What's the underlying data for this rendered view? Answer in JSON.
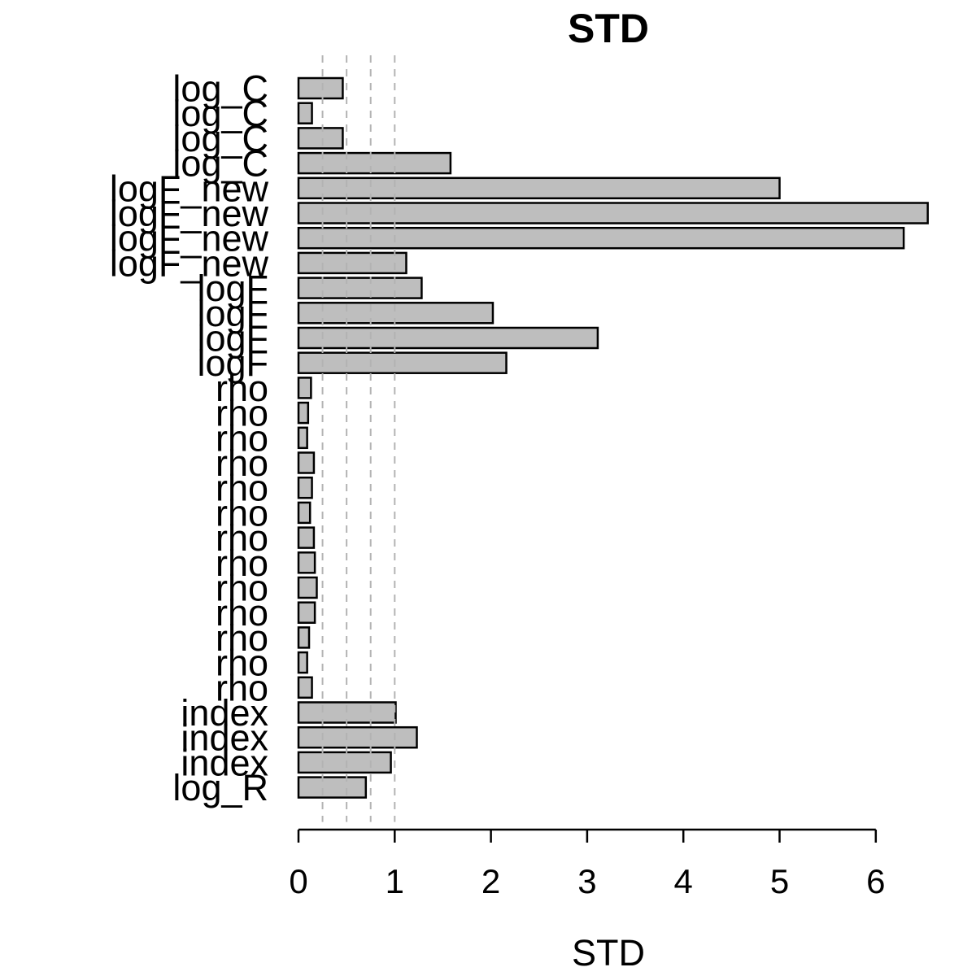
{
  "chart_data": {
    "type": "bar",
    "orientation": "horizontal",
    "title": "STD",
    "xlabel": "STD",
    "ylabel": "",
    "xlim": [
      0,
      6.6
    ],
    "xticks": [
      0,
      1,
      2,
      3,
      4,
      5,
      6
    ],
    "reference_lines": [
      0.25,
      0.5,
      0.75,
      1.0
    ],
    "colors": {
      "bar_fill": "#bebebe",
      "bar_stroke": "#000000",
      "ref_line": "#b3b3b3"
    },
    "grid": false,
    "categories": [
      "log_C",
      "log_C",
      "log_C",
      "log_C",
      "logF_new",
      "logF_new",
      "logF_new",
      "logF_new",
      "logF",
      "logF",
      "logF",
      "logF",
      "rho",
      "rho",
      "rho",
      "rho",
      "rho",
      "rho",
      "rho",
      "rho",
      "rho",
      "rho",
      "rho",
      "rho",
      "rho",
      "index",
      "index",
      "index",
      "log_R"
    ],
    "values": [
      0.46,
      0.14,
      0.46,
      1.58,
      5.0,
      6.54,
      6.29,
      1.12,
      1.28,
      2.02,
      3.11,
      2.16,
      0.13,
      0.1,
      0.09,
      0.16,
      0.14,
      0.12,
      0.16,
      0.17,
      0.19,
      0.17,
      0.11,
      0.09,
      0.14,
      1.01,
      1.23,
      0.96,
      0.7
    ]
  }
}
